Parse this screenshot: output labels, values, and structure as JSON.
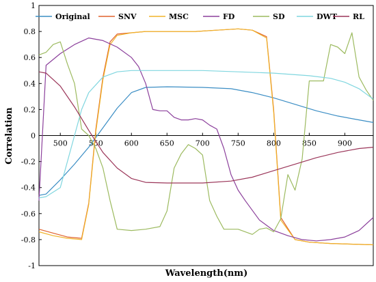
{
  "chart_data": {
    "type": "line",
    "title": "",
    "xlabel": "Wavelength(nm)",
    "ylabel": "Correlation",
    "xlim": [
      470,
      940
    ],
    "ylim": [
      -1,
      1
    ],
    "xticks": [
      500,
      550,
      600,
      650,
      700,
      750,
      800,
      850,
      900
    ],
    "yticks": [
      -1,
      -0.8,
      -0.6,
      -0.4,
      -0.2,
      0,
      0.2,
      0.4,
      0.6,
      0.8,
      1
    ],
    "legend_position": "top",
    "grid": false,
    "series": [
      {
        "name": "Original",
        "color": "#3a8dc4",
        "points": [
          [
            470,
            -0.46
          ],
          [
            480,
            -0.45
          ],
          [
            500,
            -0.34
          ],
          [
            520,
            -0.22
          ],
          [
            540,
            -0.09
          ],
          [
            560,
            0.06
          ],
          [
            580,
            0.21
          ],
          [
            600,
            0.33
          ],
          [
            620,
            0.37
          ],
          [
            650,
            0.375
          ],
          [
            700,
            0.37
          ],
          [
            740,
            0.36
          ],
          [
            770,
            0.33
          ],
          [
            800,
            0.29
          ],
          [
            830,
            0.24
          ],
          [
            860,
            0.19
          ],
          [
            890,
            0.15
          ],
          [
            920,
            0.12
          ],
          [
            940,
            0.1
          ]
        ]
      },
      {
        "name": "SNV",
        "color": "#e0602c",
        "points": [
          [
            470,
            -0.72
          ],
          [
            490,
            -0.75
          ],
          [
            510,
            -0.78
          ],
          [
            530,
            -0.79
          ],
          [
            540,
            -0.52
          ],
          [
            550,
            0.05
          ],
          [
            560,
            0.45
          ],
          [
            570,
            0.72
          ],
          [
            580,
            0.78
          ],
          [
            600,
            0.79
          ],
          [
            620,
            0.8
          ],
          [
            650,
            0.8
          ],
          [
            690,
            0.8
          ],
          [
            720,
            0.81
          ],
          [
            750,
            0.82
          ],
          [
            770,
            0.81
          ],
          [
            790,
            0.76
          ],
          [
            800,
            0.2
          ],
          [
            810,
            -0.63
          ],
          [
            830,
            -0.8
          ],
          [
            850,
            -0.82
          ],
          [
            880,
            -0.83
          ],
          [
            940,
            -0.84
          ]
        ]
      },
      {
        "name": "MSC",
        "color": "#f0b429",
        "points": [
          [
            470,
            -0.74
          ],
          [
            490,
            -0.77
          ],
          [
            510,
            -0.79
          ],
          [
            530,
            -0.8
          ],
          [
            540,
            -0.53
          ],
          [
            550,
            0.03
          ],
          [
            560,
            0.43
          ],
          [
            570,
            0.7
          ],
          [
            580,
            0.77
          ],
          [
            600,
            0.79
          ],
          [
            620,
            0.8
          ],
          [
            650,
            0.8
          ],
          [
            690,
            0.8
          ],
          [
            720,
            0.81
          ],
          [
            750,
            0.82
          ],
          [
            770,
            0.81
          ],
          [
            790,
            0.75
          ],
          [
            800,
            0.18
          ],
          [
            810,
            -0.65
          ],
          [
            830,
            -0.8
          ],
          [
            850,
            -0.82
          ],
          [
            880,
            -0.83
          ],
          [
            940,
            -0.84
          ]
        ]
      },
      {
        "name": "FD",
        "color": "#8b3f9b",
        "points": [
          [
            470,
            -0.5
          ],
          [
            480,
            0.54
          ],
          [
            500,
            0.63
          ],
          [
            520,
            0.7
          ],
          [
            540,
            0.75
          ],
          [
            560,
            0.73
          ],
          [
            580,
            0.68
          ],
          [
            600,
            0.6
          ],
          [
            610,
            0.53
          ],
          [
            620,
            0.4
          ],
          [
            630,
            0.2
          ],
          [
            640,
            0.19
          ],
          [
            650,
            0.19
          ],
          [
            660,
            0.14
          ],
          [
            670,
            0.12
          ],
          [
            680,
            0.12
          ],
          [
            690,
            0.13
          ],
          [
            700,
            0.12
          ],
          [
            710,
            0.08
          ],
          [
            720,
            0.05
          ],
          [
            730,
            -0.1
          ],
          [
            740,
            -0.3
          ],
          [
            750,
            -0.42
          ],
          [
            760,
            -0.5
          ],
          [
            780,
            -0.65
          ],
          [
            800,
            -0.73
          ],
          [
            820,
            -0.77
          ],
          [
            840,
            -0.8
          ],
          [
            860,
            -0.81
          ],
          [
            880,
            -0.8
          ],
          [
            900,
            -0.78
          ],
          [
            920,
            -0.73
          ],
          [
            940,
            -0.63
          ]
        ]
      },
      {
        "name": "SD",
        "color": "#9cba5f",
        "points": [
          [
            470,
            0.62
          ],
          [
            480,
            0.64
          ],
          [
            490,
            0.7
          ],
          [
            500,
            0.72
          ],
          [
            510,
            0.55
          ],
          [
            520,
            0.4
          ],
          [
            530,
            0.05
          ],
          [
            540,
            0.0
          ],
          [
            550,
            -0.1
          ],
          [
            560,
            -0.25
          ],
          [
            570,
            -0.5
          ],
          [
            580,
            -0.72
          ],
          [
            600,
            -0.73
          ],
          [
            620,
            -0.72
          ],
          [
            640,
            -0.7
          ],
          [
            650,
            -0.58
          ],
          [
            660,
            -0.25
          ],
          [
            670,
            -0.14
          ],
          [
            680,
            -0.07
          ],
          [
            690,
            -0.1
          ],
          [
            700,
            -0.15
          ],
          [
            710,
            -0.5
          ],
          [
            720,
            -0.62
          ],
          [
            730,
            -0.72
          ],
          [
            750,
            -0.72
          ],
          [
            770,
            -0.76
          ],
          [
            780,
            -0.72
          ],
          [
            790,
            -0.71
          ],
          [
            800,
            -0.74
          ],
          [
            810,
            -0.64
          ],
          [
            820,
            -0.3
          ],
          [
            830,
            -0.42
          ],
          [
            840,
            -0.18
          ],
          [
            850,
            0.42
          ],
          [
            860,
            0.42
          ],
          [
            870,
            0.42
          ],
          [
            880,
            0.7
          ],
          [
            890,
            0.68
          ],
          [
            900,
            0.63
          ],
          [
            910,
            0.79
          ],
          [
            920,
            0.45
          ],
          [
            930,
            0.35
          ],
          [
            940,
            0.27
          ]
        ]
      },
      {
        "name": "DWT",
        "color": "#7fd6df",
        "points": [
          [
            470,
            -0.48
          ],
          [
            480,
            -0.47
          ],
          [
            500,
            -0.4
          ],
          [
            510,
            -0.2
          ],
          [
            520,
            0.0
          ],
          [
            530,
            0.2
          ],
          [
            540,
            0.33
          ],
          [
            560,
            0.45
          ],
          [
            580,
            0.49
          ],
          [
            600,
            0.5
          ],
          [
            650,
            0.5
          ],
          [
            700,
            0.5
          ],
          [
            750,
            0.49
          ],
          [
            800,
            0.48
          ],
          [
            850,
            0.46
          ],
          [
            880,
            0.44
          ],
          [
            900,
            0.41
          ],
          [
            920,
            0.36
          ],
          [
            940,
            0.28
          ]
        ]
      },
      {
        "name": "RL",
        "color": "#9a3458",
        "points": [
          [
            470,
            0.49
          ],
          [
            480,
            0.48
          ],
          [
            500,
            0.38
          ],
          [
            520,
            0.22
          ],
          [
            540,
            0.04
          ],
          [
            560,
            -0.13
          ],
          [
            580,
            -0.25
          ],
          [
            600,
            -0.33
          ],
          [
            620,
            -0.36
          ],
          [
            650,
            -0.365
          ],
          [
            700,
            -0.365
          ],
          [
            740,
            -0.35
          ],
          [
            770,
            -0.32
          ],
          [
            800,
            -0.27
          ],
          [
            830,
            -0.22
          ],
          [
            860,
            -0.17
          ],
          [
            890,
            -0.13
          ],
          [
            920,
            -0.1
          ],
          [
            940,
            -0.09
          ]
        ]
      }
    ]
  }
}
